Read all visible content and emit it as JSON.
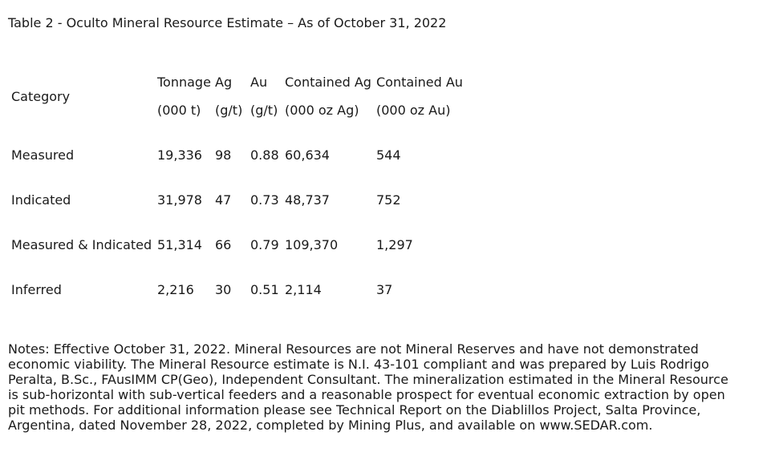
{
  "title": "Table 2 - Oculto Mineral Resource Estimate – As of October 31, 2022",
  "table": {
    "category_header": "Category",
    "headers": [
      "Tonnage",
      "Ag",
      "Au",
      "Contained Ag",
      "Contained Au"
    ],
    "units": [
      "(000 t)",
      "(g/t)",
      "(g/t)",
      "(000 oz Ag)",
      "(000 oz Au)"
    ],
    "rows": [
      [
        "Measured",
        "19,336",
        "98",
        "0.88",
        "60,634",
        "544"
      ],
      [
        "Indicated",
        "31,978",
        "47",
        "0.73",
        "48,737",
        "752"
      ],
      [
        "Measured & Indicated",
        "51,314",
        "66",
        "0.79",
        "109,370",
        "1,297"
      ],
      [
        "Inferred",
        "2,216",
        "30",
        "0.51",
        "2,114",
        "37"
      ]
    ]
  },
  "notes": "Notes: Effective October 31, 2022. Mineral Resources are not Mineral Reserves and have not demonstrated economic viability. The Mineral Resource estimate is N.I. 43-101 compliant and was prepared by Luis Rodrigo Peralta, B.Sc., FAusIMM CP(Geo), Independent Consultant. The mineralization estimated in the Mineral Resource is sub-horizontal with sub-vertical feeders and a reasonable prospect for eventual economic extraction by open pit methods. For additional information please see Technical Report on the Diablillos Project, Salta Province, Argentina, dated November 28, 2022, completed by Mining Plus, and available on www.SEDAR.com."
}
